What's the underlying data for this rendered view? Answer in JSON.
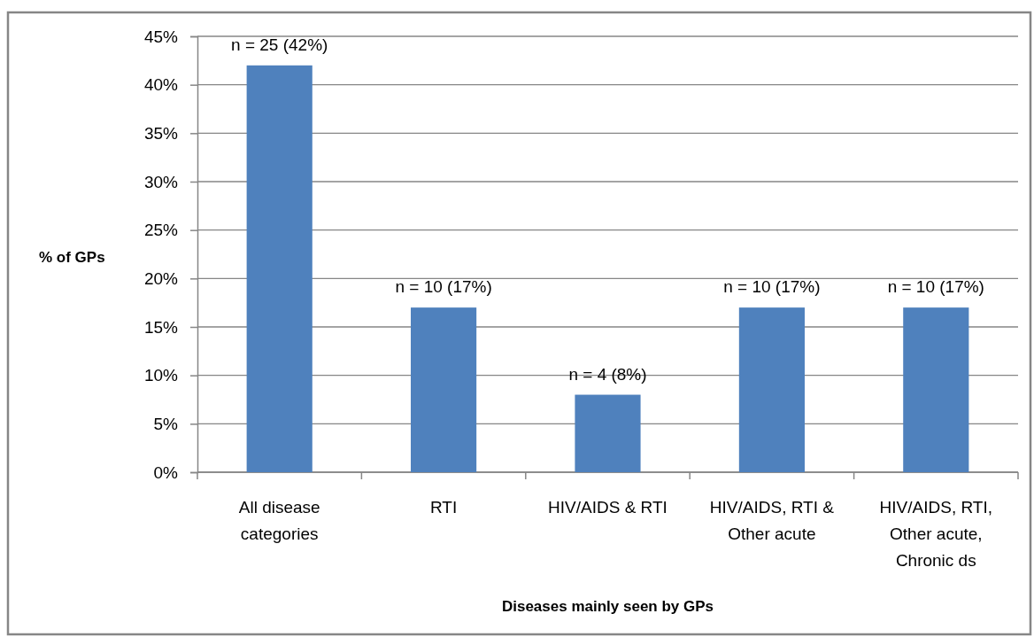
{
  "chart_data": {
    "type": "bar",
    "xlabel": "Diseases mainly seen by GPs",
    "ylabel": "% of GPs",
    "categories": [
      "All disease categories",
      "RTI",
      "HIV/AIDS & RTI",
      "HIV/AIDS, RTI & Other acute",
      "HIV/AIDS, RTI, Other acute, Chronic ds"
    ],
    "values": [
      42,
      17,
      8,
      17,
      17
    ],
    "color": "#4f81bd",
    "value_labels": [
      "n = 25 (42%)",
      "n = 10 (17%)",
      "n = 4 (8%)",
      "n = 10 (17%)",
      "n = 10 (17%)"
    ],
    "ylim": [
      0,
      45
    ],
    "yticks": [
      {
        "value": 0,
        "label": "0%"
      },
      {
        "value": 5,
        "label": "5%"
      },
      {
        "value": 10,
        "label": "10%"
      },
      {
        "value": 15,
        "label": "15%"
      },
      {
        "value": 20,
        "label": "20%"
      },
      {
        "value": 25,
        "label": "25%"
      },
      {
        "value": 30,
        "label": "30%"
      },
      {
        "value": 35,
        "label": "35%"
      },
      {
        "value": 40,
        "label": "40%"
      },
      {
        "value": 45,
        "label": "45%"
      }
    ],
    "grid": "y"
  }
}
